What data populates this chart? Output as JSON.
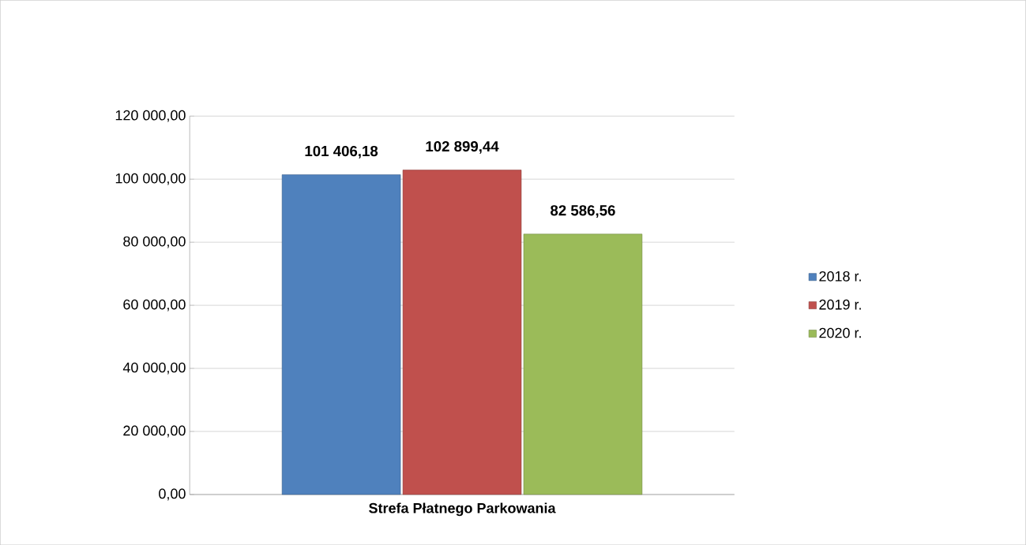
{
  "chart_data": {
    "type": "bar",
    "categories": [
      "Strefa Płatnego Parkowania"
    ],
    "series": [
      {
        "name": "2018 r.",
        "color": "#4f81bd",
        "values": [
          101406.18
        ],
        "value_labels": [
          "101 406,18"
        ]
      },
      {
        "name": "2019 r.",
        "color": "#c0504d",
        "values": [
          102899.44
        ],
        "value_labels": [
          "102 899,44"
        ]
      },
      {
        "name": "2020 r.",
        "color": "#9bbb59",
        "values": [
          82586.56
        ],
        "value_labels": [
          "82 586,56"
        ]
      }
    ],
    "ylim": [
      0,
      120000
    ],
    "yticks": [
      {
        "value": 0,
        "label": "0,00"
      },
      {
        "value": 20000,
        "label": "20 000,00"
      },
      {
        "value": 40000,
        "label": "40 000,00"
      },
      {
        "value": 60000,
        "label": "60 000,00"
      },
      {
        "value": 80000,
        "label": "80 000,00"
      },
      {
        "value": 100000,
        "label": "100 000,00"
      },
      {
        "value": 120000,
        "label": "120 000,00"
      }
    ],
    "grid": "y",
    "legend": "right"
  }
}
